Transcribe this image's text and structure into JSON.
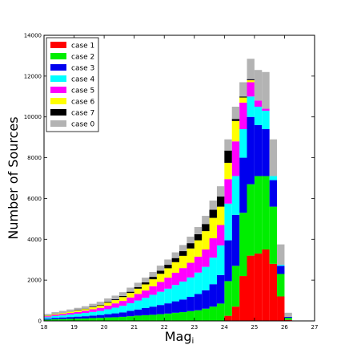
{
  "chart_data": {
    "type": "bar",
    "stacked": true,
    "title": "",
    "xlabel_main": "Mag",
    "xlabel_sub": "i",
    "ylabel": "Number of Sources",
    "xlim": [
      18,
      27
    ],
    "ylim": [
      0,
      14000
    ],
    "xticks": [
      "18",
      "19",
      "20",
      "21",
      "22",
      "23",
      "24",
      "25",
      "26",
      "27"
    ],
    "yticks": [
      "0",
      "2000",
      "4000",
      "6000",
      "8000",
      "10000",
      "12000",
      "14000"
    ],
    "legend_position": "top-left",
    "bin_width": 0.25,
    "x": [
      18.0,
      18.25,
      18.5,
      18.75,
      19.0,
      19.25,
      19.5,
      19.75,
      20.0,
      20.25,
      20.5,
      20.75,
      21.0,
      21.25,
      21.5,
      21.75,
      22.0,
      22.25,
      22.5,
      22.75,
      23.0,
      23.25,
      23.5,
      23.75,
      24.0,
      24.25,
      24.5,
      24.75,
      25.0,
      25.25,
      25.5,
      25.75,
      26.0,
      26.25
    ],
    "series": [
      {
        "name": "case 1",
        "color": "#ff0000",
        "values": [
          0,
          0,
          0,
          0,
          0,
          0,
          0,
          0,
          0,
          0,
          0,
          0,
          0,
          0,
          0,
          0,
          0,
          0,
          0,
          0,
          0,
          0,
          0,
          0,
          250,
          700,
          2200,
          3200,
          3300,
          3500,
          2800,
          1200,
          50,
          0
        ]
      },
      {
        "name": "case 2",
        "color": "#00ee00",
        "values": [
          60,
          80,
          90,
          100,
          110,
          120,
          140,
          150,
          170,
          180,
          200,
          230,
          260,
          280,
          300,
          330,
          360,
          400,
          430,
          480,
          520,
          600,
          700,
          850,
          1700,
          2000,
          3100,
          3500,
          3800,
          3600,
          2800,
          1100,
          100,
          0
        ]
      },
      {
        "name": "case 3",
        "color": "#0000ee",
        "values": [
          50,
          70,
          80,
          90,
          100,
          110,
          120,
          140,
          160,
          190,
          220,
          260,
          300,
          350,
          400,
          450,
          500,
          560,
          620,
          700,
          800,
          900,
          1100,
          1400,
          2000,
          2500,
          2700,
          3300,
          2500,
          2300,
          1300,
          400,
          50,
          0
        ]
      },
      {
        "name": "case 4",
        "color": "#00ffff",
        "values": [
          70,
          90,
          100,
          120,
          140,
          160,
          180,
          200,
          240,
          280,
          320,
          380,
          440,
          500,
          580,
          650,
          720,
          800,
          880,
          950,
          1050,
          1150,
          1300,
          1450,
          1800,
          1900,
          1400,
          1000,
          900,
          900,
          200,
          50,
          0,
          0
        ]
      },
      {
        "name": "case 5",
        "color": "#ff00ff",
        "values": [
          50,
          60,
          70,
          80,
          90,
          110,
          130,
          150,
          180,
          210,
          240,
          280,
          320,
          360,
          420,
          480,
          540,
          600,
          660,
          720,
          780,
          850,
          950,
          1000,
          1200,
          1700,
          1300,
          700,
          300,
          100,
          0,
          0,
          0,
          0
        ]
      },
      {
        "name": "case 6",
        "color": "#ffff00",
        "values": [
          30,
          40,
          50,
          60,
          70,
          80,
          100,
          120,
          140,
          160,
          190,
          220,
          260,
          300,
          340,
          400,
          460,
          520,
          600,
          700,
          800,
          900,
          1000,
          900,
          800,
          1000,
          250,
          100,
          0,
          0,
          0,
          0,
          0,
          0
        ]
      },
      {
        "name": "case 7",
        "color": "#000000",
        "values": [
          10,
          10,
          10,
          10,
          20,
          20,
          30,
          30,
          40,
          40,
          50,
          60,
          80,
          100,
          120,
          150,
          170,
          200,
          230,
          260,
          300,
          350,
          400,
          500,
          600,
          100,
          50,
          50,
          0,
          0,
          0,
          0,
          0,
          0
        ]
      },
      {
        "name": "case 0",
        "color": "#b3b3b3",
        "values": [
          70,
          80,
          90,
          100,
          110,
          120,
          140,
          150,
          170,
          180,
          190,
          200,
          210,
          230,
          240,
          250,
          260,
          280,
          300,
          320,
          350,
          400,
          450,
          500,
          550,
          600,
          700,
          1000,
          1500,
          1800,
          1800,
          1000,
          200,
          0
        ]
      }
    ]
  }
}
